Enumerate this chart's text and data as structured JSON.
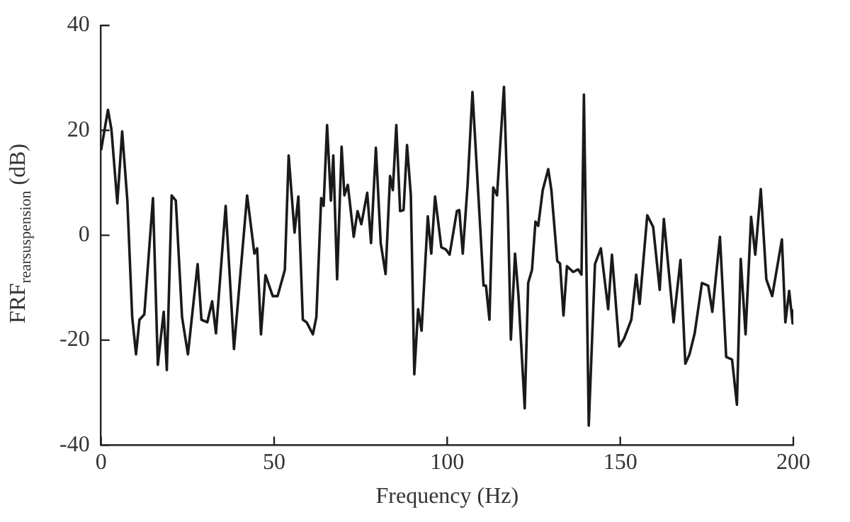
{
  "chart_data": {
    "type": "line",
    "xlabel": "Frequency (Hz)",
    "ylabel": "FRF$_{rearsuspension}$ (dB)",
    "xlim": [
      0,
      200
    ],
    "xticks": [
      0,
      50,
      100,
      150,
      200
    ],
    "ylim": [
      -40,
      40
    ],
    "yticks": [
      -40,
      -20,
      0,
      20,
      40
    ],
    "grid": false,
    "legend": false,
    "marker": "none",
    "line_style": "solid",
    "series": [
      {
        "color": "#1a1a1a",
        "x": [
          0,
          2,
          3,
          4.7,
          6.1,
          7.6,
          9,
          10.1,
          11.1,
          12.5,
          15,
          16.4,
          18.1,
          19,
          20.4,
          21.6,
          23.4,
          25.1,
          27.9,
          29,
          30.7,
          32.1,
          33.2,
          36,
          38.4,
          42.2,
          44.3,
          45.1,
          46.2,
          47.5,
          49.6,
          51,
          53.1,
          54.2,
          55.9,
          57,
          58.3,
          59.4,
          61.2,
          62.2,
          63.6,
          64.3,
          65.3,
          66.4,
          67.1,
          68.2,
          69.5,
          70.3,
          71.3,
          73,
          74.1,
          75.2,
          76.9,
          78,
          79.4,
          80.8,
          82.2,
          83.5,
          84.3,
          85.3,
          86.4,
          87.4,
          88.4,
          89.5,
          90.5,
          91.6,
          92.6,
          94.4,
          95.4,
          96.5,
          98.3,
          99.6,
          100.7,
          102.8,
          103.5,
          104.5,
          105.9,
          107.3,
          110.5,
          111.2,
          112.2,
          113.3,
          114.4,
          116.4,
          117.5,
          118.4,
          119.6,
          120.6,
          122.4,
          123.4,
          124.5,
          125.5,
          126.3,
          127.6,
          129.2,
          130.1,
          131.8,
          132.6,
          133.6,
          134.6,
          136.4,
          137.8,
          138.8,
          139.5,
          140.9,
          142.7,
          144.4,
          146.5,
          147.6,
          149.7,
          151.1,
          153.2,
          154.6,
          155.6,
          157.8,
          159.5,
          161.4,
          162.6,
          165.4,
          167.4,
          168.8,
          170,
          171.5,
          173.6,
          175.4,
          176.6,
          178.8,
          180.6,
          182.3,
          183.7,
          184.8,
          186.2,
          187.8,
          189,
          190.6,
          192.2,
          193.9,
          196.7,
          197.7,
          198.8,
          199.8,
          200
        ],
        "values": [
          16.2,
          23.9,
          20.2,
          6.1,
          19.8,
          6.6,
          -15.6,
          -22.7,
          -16.1,
          -15.1,
          7.1,
          -24.7,
          -14.6,
          -25.7,
          7.6,
          6.6,
          -15.6,
          -22.7,
          -5.5,
          -16.1,
          -16.6,
          -12.6,
          -18.7,
          5.6,
          -21.7,
          7.6,
          -3.5,
          -2.5,
          -18.9,
          -7.6,
          -11.6,
          -11.6,
          -6.6,
          15.2,
          0.5,
          7.4,
          -16.1,
          -16.6,
          -18.9,
          -15.6,
          7.1,
          5.6,
          21,
          6.6,
          15.2,
          -8.4,
          16.9,
          7.6,
          9.6,
          -0.3,
          4.6,
          2.1,
          8.1,
          -1.5,
          16.7,
          -1.5,
          -7.4,
          11.3,
          8.6,
          21,
          4.6,
          4.8,
          17.2,
          7.6,
          -26.5,
          -14.1,
          -18.2,
          3.6,
          -3.5,
          7.4,
          -2.3,
          -2.7,
          -3.7,
          4.6,
          4.8,
          -3.5,
          9.6,
          27.3,
          -9.6,
          -9.6,
          -16.1,
          9.1,
          7.6,
          28.3,
          5.6,
          -19.9,
          -3.5,
          -11.6,
          -33,
          -9.1,
          -6.6,
          2.6,
          1.8,
          8.6,
          12.6,
          8.6,
          -4.9,
          -5.4,
          -15.3,
          -5.9,
          -7,
          -6.5,
          -7.5,
          26.8,
          -36.3,
          -5.5,
          -2.5,
          -14.1,
          -3.7,
          -21.2,
          -19.7,
          -16.1,
          -7.5,
          -13.1,
          3.8,
          1.6,
          -10.4,
          3.1,
          -16.6,
          -4.7,
          -24.5,
          -22.7,
          -18.7,
          -9.1,
          -9.6,
          -14.6,
          -0.3,
          -23.2,
          -23.7,
          -32.3,
          -4.5,
          -18.9,
          3.5,
          -3.7,
          8.8,
          -8.4,
          -11.6,
          -0.8,
          -16.6,
          -10.6,
          -16.8,
          -14.1
        ]
      }
    ]
  }
}
